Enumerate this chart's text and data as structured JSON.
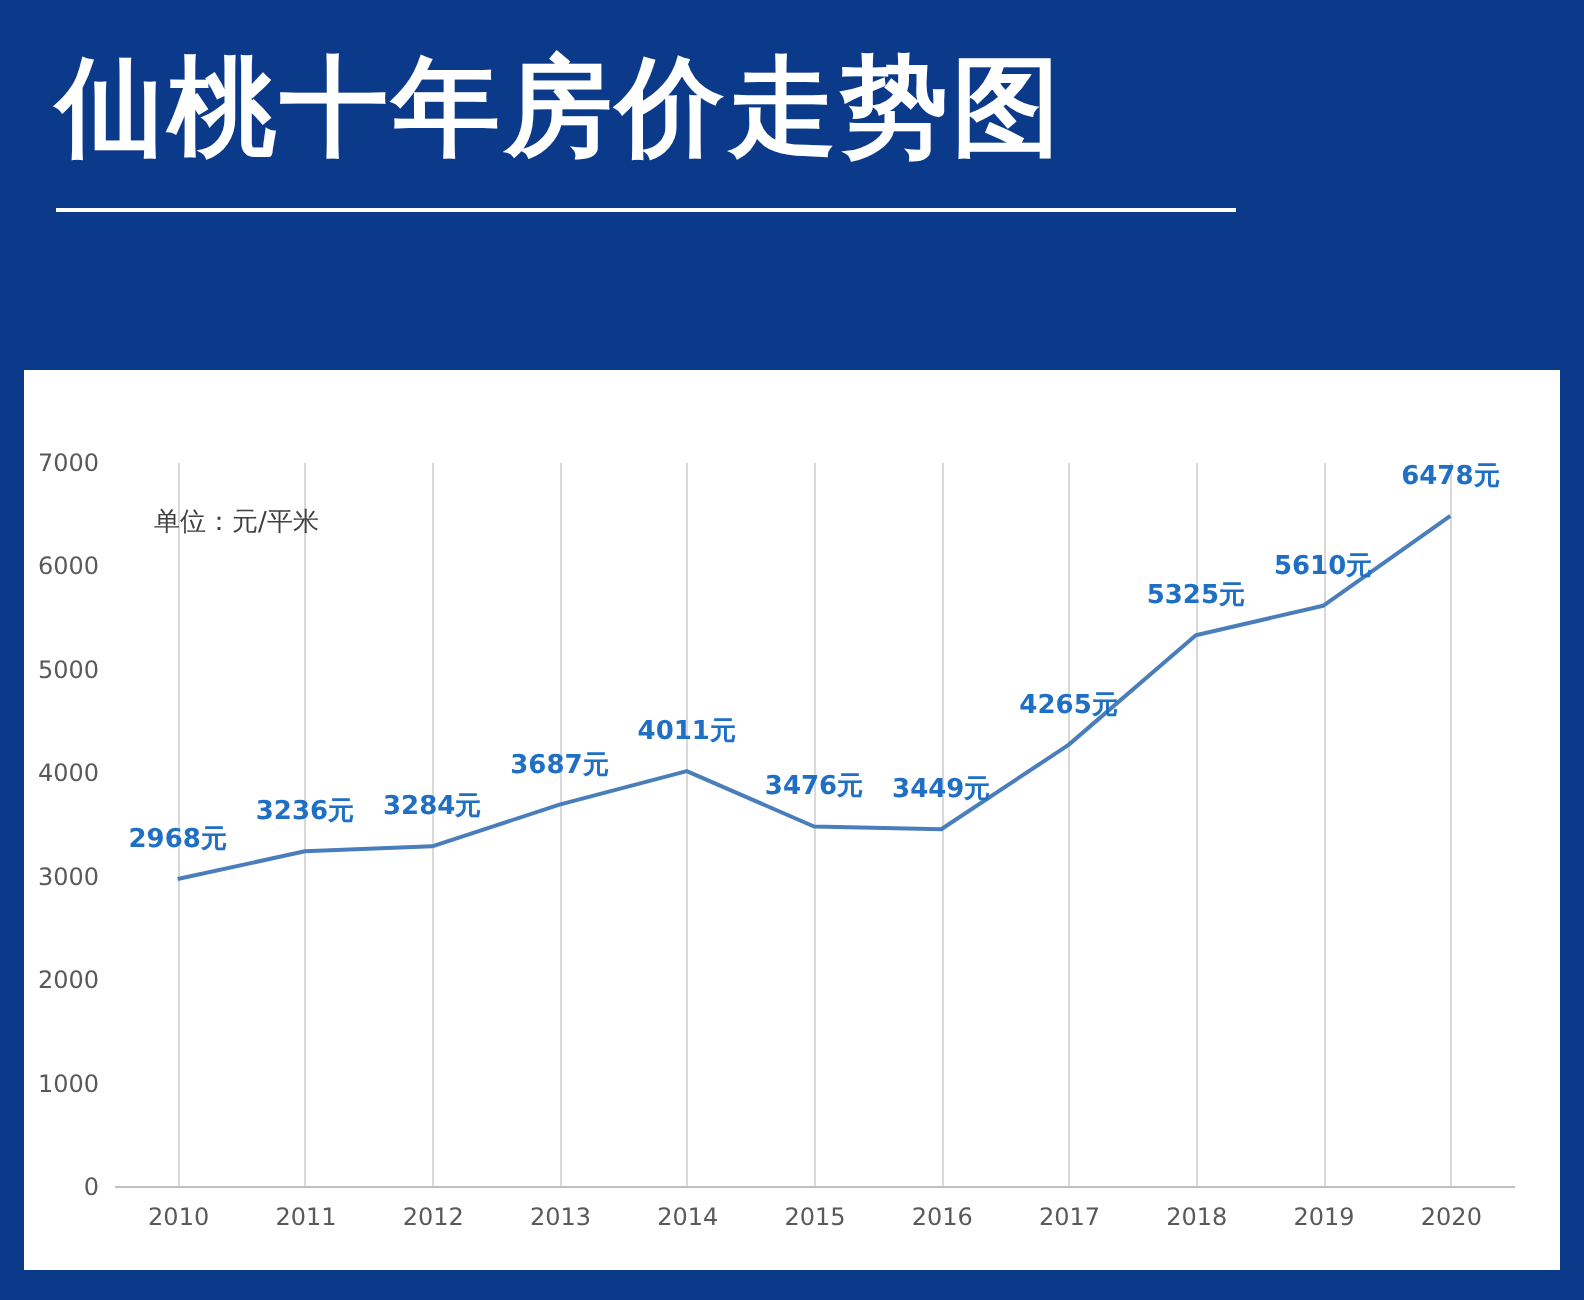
{
  "chart_data": {
    "type": "line",
    "title": "仙桃十年房价走势图",
    "categories": [
      "2010",
      "2011",
      "2012",
      "2013",
      "2014",
      "2015",
      "2016",
      "2017",
      "2018",
      "2019",
      "2020"
    ],
    "series": [
      {
        "color": "#4a7ebb",
        "values": [
          2968,
          3236,
          3284,
          3687,
          4011,
          3476,
          3449,
          4265,
          5325,
          5610,
          6478
        ],
        "value_labels": [
          "2968元",
          "3236元",
          "3284元",
          "3687元",
          "4011元",
          "3476元",
          "3449元",
          "4265元",
          "5325元",
          "5610元",
          "6478元"
        ]
      }
    ],
    "ylim": [
      0,
      7000
    ],
    "yticks": [
      0,
      1000,
      2000,
      3000,
      4000,
      5000,
      6000,
      7000
    ],
    "grid": "x",
    "marker": "none",
    "line_style": "solid",
    "annotations": [
      "单位：元/平米"
    ]
  }
}
